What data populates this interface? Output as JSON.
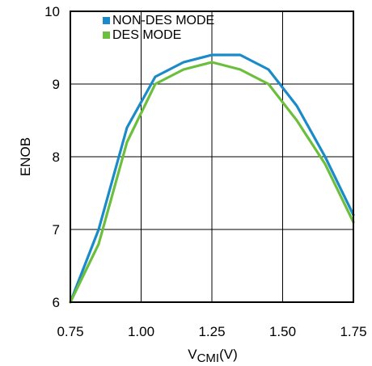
{
  "chart_data": {
    "type": "line",
    "xlabel_main": "V",
    "xlabel_sub": "CMI",
    "xlabel_unit": "(V)",
    "ylabel": "ENOB",
    "xlim": [
      0.75,
      1.75
    ],
    "ylim": [
      6,
      10
    ],
    "xticks": [
      "0.75",
      "1.00",
      "1.25",
      "1.50",
      "1.75"
    ],
    "yticks": [
      "6",
      "7",
      "8",
      "9",
      "10"
    ],
    "grid": true,
    "legend_position": "top-left",
    "series": [
      {
        "name": "NON-DES MODE",
        "color": "#1b8ac8",
        "x": [
          0.75,
          0.85,
          0.95,
          1.05,
          1.15,
          1.25,
          1.35,
          1.45,
          1.55,
          1.65,
          1.75
        ],
        "y": [
          6.0,
          7.0,
          8.4,
          9.1,
          9.3,
          9.4,
          9.4,
          9.2,
          8.7,
          8.0,
          7.2
        ]
      },
      {
        "name": "DES MODE",
        "color": "#6cbf3c",
        "x": [
          0.75,
          0.85,
          0.95,
          1.05,
          1.15,
          1.25,
          1.35,
          1.45,
          1.55,
          1.65,
          1.75
        ],
        "y": [
          6.0,
          6.8,
          8.2,
          9.0,
          9.2,
          9.3,
          9.2,
          9.0,
          8.5,
          7.9,
          7.1
        ]
      }
    ]
  }
}
